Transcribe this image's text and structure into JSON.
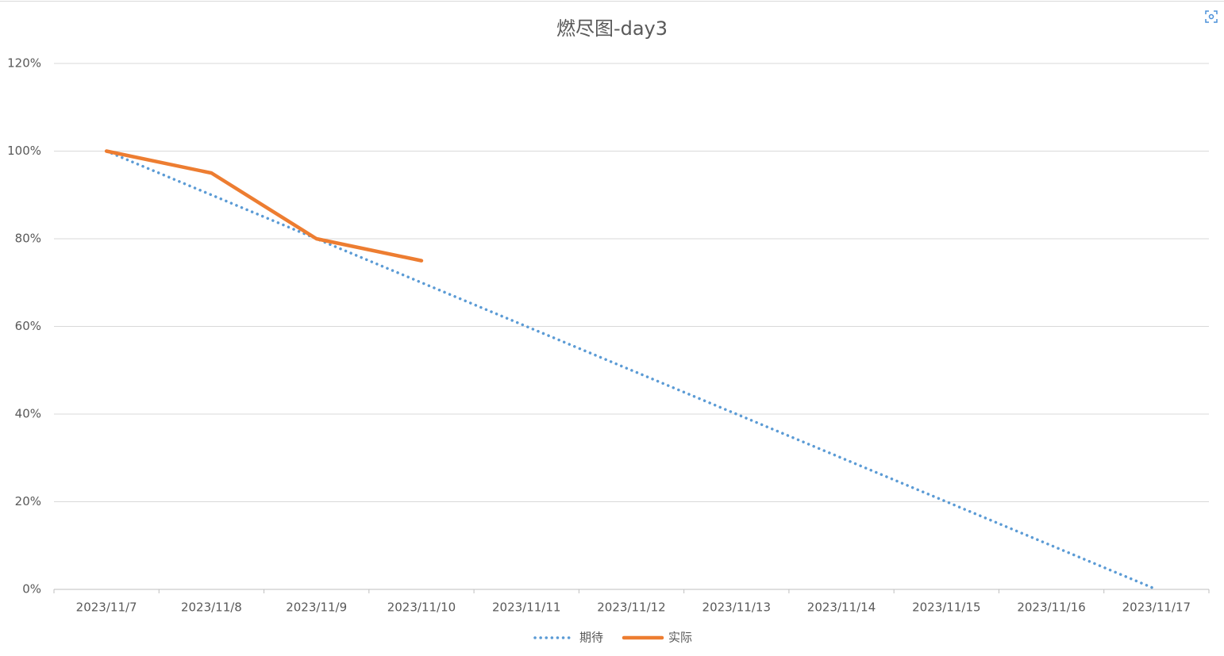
{
  "chart_data": {
    "type": "line",
    "title": "燃尽图-day3",
    "categories": [
      "2023/11/7",
      "2023/11/8",
      "2023/11/9",
      "2023/11/10",
      "2023/11/11",
      "2023/11/12",
      "2023/11/13",
      "2023/11/14",
      "2023/11/15",
      "2023/11/16",
      "2023/11/17"
    ],
    "series": [
      {
        "name": "期待",
        "color": "#5b9bd5",
        "dash": "dotted",
        "values": [
          100,
          90,
          80,
          70,
          60,
          50,
          40,
          30,
          20,
          10,
          0
        ]
      },
      {
        "name": "实际",
        "color": "#ed7d31",
        "dash": "solid",
        "values": [
          100,
          95,
          80,
          75,
          null,
          null,
          null,
          null,
          null,
          null,
          null
        ]
      }
    ],
    "ylim": [
      0,
      120
    ],
    "yticks": [
      {
        "value": 0,
        "label": "0%"
      },
      {
        "value": 20,
        "label": "20%"
      },
      {
        "value": 40,
        "label": "40%"
      },
      {
        "value": 60,
        "label": "60%"
      },
      {
        "value": 80,
        "label": "80%"
      },
      {
        "value": 100,
        "label": "100%"
      },
      {
        "value": 120,
        "label": "120%"
      }
    ],
    "grid": true,
    "legend": "bottom"
  }
}
